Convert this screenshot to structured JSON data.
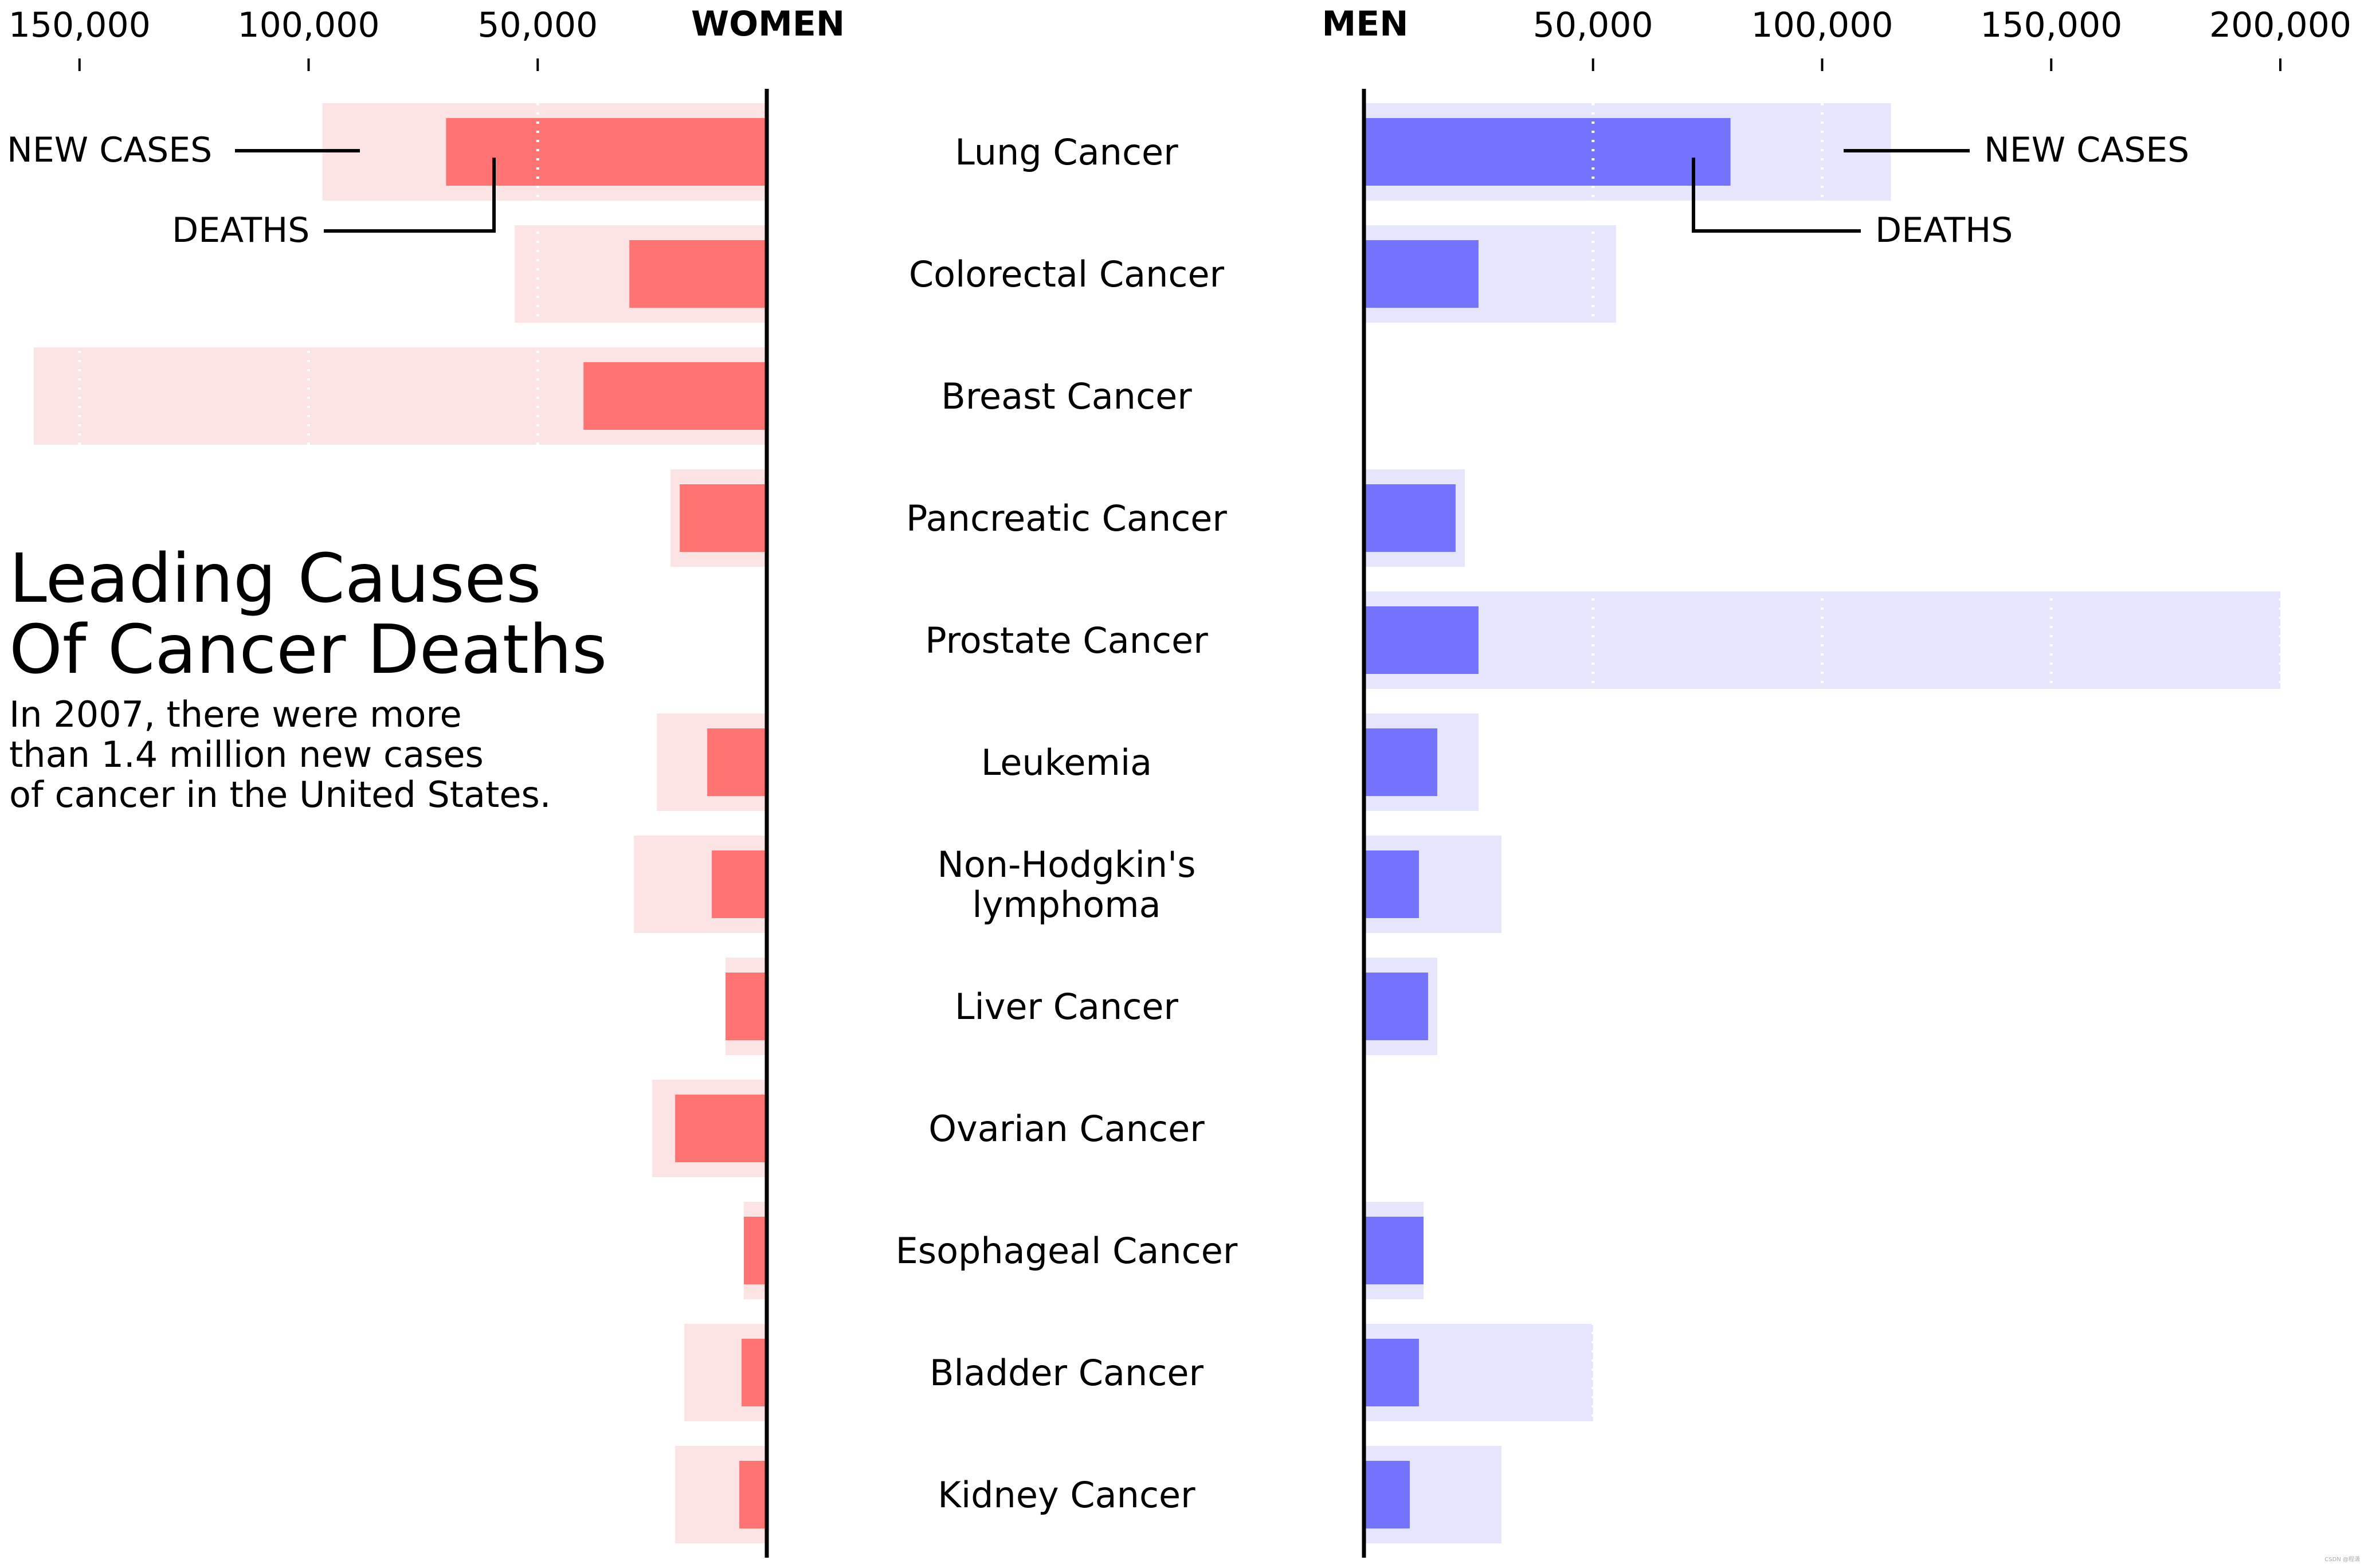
{
  "chart_data": {
    "type": "bar",
    "title": "Leading Causes Of Cancer Deaths",
    "title_lines": [
      "Leading Causes",
      "Of Cancer Deaths"
    ],
    "subtitle_lines": [
      "In 2007, there were more",
      "than 1.4 million new cases",
      "of cancer in the United States."
    ],
    "left_header": "WOMEN",
    "right_header": "MEN",
    "left_axis": {
      "ticks": [
        150000,
        100000,
        50000
      ],
      "tick_labels": [
        "150,000",
        "100,000",
        "50,000"
      ],
      "range": [
        0,
        160000
      ]
    },
    "right_axis": {
      "ticks": [
        50000,
        100000,
        150000,
        200000
      ],
      "tick_labels": [
        "50,000",
        "100,000",
        "150,000",
        "200,000"
      ],
      "range": [
        0,
        200000
      ]
    },
    "categories": [
      [
        "Lung Cancer"
      ],
      [
        "Colorectal Cancer"
      ],
      [
        "Breast Cancer"
      ],
      [
        "Pancreatic Cancer"
      ],
      [
        "Prostate Cancer"
      ],
      [
        "Leukemia"
      ],
      [
        "Non-Hodgkin's",
        "lymphoma"
      ],
      [
        "Liver Cancer"
      ],
      [
        "Ovarian Cancer"
      ],
      [
        "Esophageal Cancer"
      ],
      [
        "Bladder Cancer"
      ],
      [
        "Kidney Cancer"
      ]
    ],
    "series": [
      {
        "name": "Women new cases",
        "side": "left",
        "kind": "new",
        "values": [
          97000,
          55000,
          160000,
          21000,
          0,
          24000,
          29000,
          9000,
          25000,
          5000,
          18000,
          20000
        ]
      },
      {
        "name": "Women deaths",
        "side": "left",
        "kind": "deaths",
        "values": [
          70000,
          30000,
          40000,
          19000,
          0,
          13000,
          12000,
          9000,
          20000,
          5000,
          5500,
          6000
        ]
      },
      {
        "name": "Men new cases",
        "side": "right",
        "kind": "new",
        "values": [
          115000,
          55000,
          0,
          22000,
          200000,
          25000,
          30000,
          16000,
          0,
          13000,
          50000,
          30000
        ]
      },
      {
        "name": "Men deaths",
        "side": "right",
        "kind": "deaths",
        "values": [
          80000,
          25000,
          0,
          20000,
          25000,
          16000,
          12000,
          14000,
          0,
          13000,
          12000,
          10000
        ]
      }
    ],
    "annotations": {
      "left_new": "NEW CASES",
      "left_deaths": "DEATHS",
      "right_new": "NEW CASES",
      "right_deaths": "DEATHS"
    },
    "colors": {
      "women_new": "#fde4e4",
      "women_deaths": "#ff7373",
      "men_new": "#e5e5fd",
      "men_deaths": "#7373ff",
      "axis": "#000000",
      "grid": "#ffffff"
    },
    "watermark": "CSDN @程潇"
  }
}
